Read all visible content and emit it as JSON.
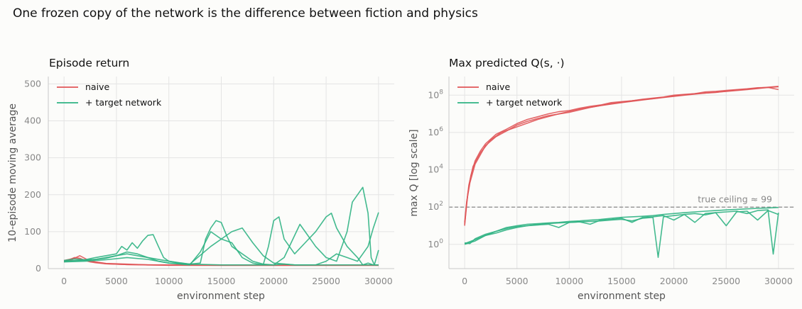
{
  "figure": {
    "suptitle": "One frozen copy of the network is the difference between fiction and physics"
  },
  "colors": {
    "naive": "#e05558",
    "target": "#2fb383",
    "grid": "#e4e4e4",
    "spine": "#c8c8c8",
    "ceiling": "#888888"
  },
  "chart_data": [
    {
      "type": "line",
      "title": "Episode return",
      "xlabel": "environment step",
      "ylabel": "10-episode moving average",
      "xlim": [
        -1500,
        31500
      ],
      "ylim": [
        0,
        520
      ],
      "yscale": "linear",
      "grid": true,
      "legend_position": "top-left",
      "xticks": [
        0,
        5000,
        10000,
        15000,
        20000,
        25000,
        30000
      ],
      "xtick_labels": [
        "0",
        "5000",
        "10000",
        "15000",
        "20000",
        "25000",
        "30000"
      ],
      "yticks": [
        0,
        100,
        200,
        300,
        400,
        500
      ],
      "ytick_labels": [
        "0",
        "100",
        "200",
        "300",
        "400",
        "500"
      ],
      "legend": [
        "naive",
        "+ target network"
      ],
      "series": [
        {
          "name": "naive",
          "color_key": "naive",
          "runs": [
            {
              "x": [
                0,
                500,
                1000,
                1500,
                2000,
                2500,
                3000,
                4000,
                5000,
                6000,
                8000,
                10000,
                15000,
                20000,
                25000,
                30000
              ],
              "y": [
                20,
                24,
                30,
                28,
                22,
                18,
                16,
                13,
                12,
                11,
                10,
                10,
                9,
                9,
                9,
                9
              ]
            },
            {
              "x": [
                0,
                1000,
                2000,
                3000,
                4000,
                6000,
                8000,
                10000,
                15000,
                20000,
                25000,
                30000
              ],
              "y": [
                18,
                26,
                24,
                18,
                14,
                12,
                10,
                9,
                9,
                9,
                9,
                9
              ]
            },
            {
              "x": [
                0,
                1000,
                1500,
                2500,
                4000,
                6000,
                9000,
                12000,
                20000,
                30000
              ],
              "y": [
                22,
                28,
                35,
                20,
                13,
                11,
                10,
                9,
                9,
                9
              ]
            }
          ]
        },
        {
          "name": "+ target network",
          "color_key": "target",
          "runs": [
            {
              "x": [
                0,
                1000,
                2000,
                3000,
                4000,
                5000,
                5500,
                6000,
                6500,
                7000,
                7500,
                8000,
                8500,
                9000,
                9500,
                10000,
                11000,
                12000,
                13000,
                13500,
                14000,
                14500,
                15000,
                15500,
                16000,
                17000,
                18000,
                19000,
                20000,
                21000,
                22000,
                23000,
                24000,
                25000,
                26000,
                27000,
                28000,
                28500,
                29000,
                29500,
                30000
              ],
              "y": [
                22,
                26,
                24,
                30,
                35,
                40,
                60,
                50,
                70,
                55,
                75,
                90,
                92,
                60,
                30,
                20,
                15,
                12,
                15,
                80,
                110,
                130,
                125,
                90,
                60,
                40,
                20,
                12,
                10,
                12,
                10,
                10,
                10,
                10,
                10,
                10,
                10,
                10,
                10,
                10,
                10
              ]
            },
            {
              "x": [
                0,
                2000,
                4000,
                5000,
                6000,
                7000,
                8000,
                9000,
                10000,
                12000,
                13000,
                14000,
                15000,
                16000,
                17000,
                18000,
                19000,
                19500,
                20000,
                20500,
                21000,
                22000,
                23000,
                24000,
                25000,
                25500,
                26000,
                27000,
                28000,
                28500,
                29000,
                29500,
                30000
              ],
              "y": [
                20,
                22,
                28,
                35,
                45,
                40,
                30,
                20,
                15,
                10,
                45,
                100,
                80,
                70,
                30,
                15,
                10,
                60,
                130,
                140,
                80,
                40,
                70,
                100,
                140,
                150,
                110,
                60,
                30,
                10,
                15,
                10,
                10
              ]
            },
            {
              "x": [
                0,
                3000,
                6000,
                8000,
                10000,
                12000,
                15000,
                18000,
                20000,
                21000,
                22000,
                22500,
                23000,
                24000,
                25000,
                26000,
                27000,
                27500,
                28000,
                28500,
                29000,
                29300,
                29600,
                30000
              ],
              "y": [
                20,
                25,
                40,
                30,
                20,
                12,
                10,
                10,
                10,
                30,
                90,
                120,
                100,
                60,
                30,
                20,
                100,
                180,
                200,
                220,
                150,
                30,
                10,
                50
              ]
            },
            {
              "x": [
                0,
                2000,
                4000,
                6000,
                8000,
                10000,
                12000,
                14000,
                16000,
                17000,
                18000,
                19000,
                20000,
                22000,
                24000,
                25000,
                26000,
                27000,
                28000,
                29000,
                29500,
                30000
              ],
              "y": [
                18,
                20,
                24,
                30,
                25,
                15,
                12,
                60,
                100,
                110,
                70,
                35,
                15,
                10,
                10,
                20,
                40,
                30,
                20,
                60,
                110,
                152
              ]
            }
          ]
        }
      ]
    },
    {
      "type": "line",
      "title": "Max predicted Q(s, ·)",
      "xlabel": "environment step",
      "ylabel": "max Q  [log scale]",
      "xlim": [
        -1500,
        31500
      ],
      "ylim": [
        0.05,
        1000000000
      ],
      "yscale": "log",
      "grid": true,
      "legend_position": "top-left",
      "xticks": [
        0,
        5000,
        10000,
        15000,
        20000,
        25000,
        30000
      ],
      "xtick_labels": [
        "0",
        "5000",
        "10000",
        "15000",
        "20000",
        "25000",
        "30000"
      ],
      "yticks": [
        1,
        100,
        10000,
        1000000,
        100000000
      ],
      "ytick_bases": [
        "10",
        "10",
        "10",
        "10",
        "10"
      ],
      "ytick_exponents": [
        "0",
        "2",
        "4",
        "6",
        "8"
      ],
      "legend": [
        "naive",
        "+ target network"
      ],
      "reference_line": {
        "y": 99,
        "label": "true ceiling ≈ 99"
      },
      "series": [
        {
          "name": "naive",
          "color_key": "naive",
          "runs": [
            {
              "x": [
                0,
                100,
                300,
                600,
                1000,
                1500,
                2000,
                3000,
                4000,
                5000,
                6000,
                7000,
                8000,
                9000,
                10000,
                11000,
                12000,
                13000,
                14000,
                15000,
                16000,
                17000,
                18000,
                19000,
                20000,
                21000,
                22000,
                23000,
                24000,
                25000,
                26000,
                27000,
                28000,
                29000,
                30000
              ],
              "y": [
                12,
                40,
                500,
                5000,
                30000,
                100000,
                250000,
                800000,
                1500000,
                3000000,
                5000000,
                7000000,
                10000000,
                13000000,
                15000000,
                20000000,
                25000000,
                30000000,
                40000000,
                45000000,
                50000000,
                60000000,
                70000000,
                80000000,
                100000000,
                110000000,
                120000000,
                150000000,
                160000000,
                180000000,
                200000000,
                220000000,
                250000000,
                260000000,
                280000000
              ]
            },
            {
              "x": [
                0,
                200,
                500,
                1000,
                2000,
                3000,
                4000,
                5000,
                6000,
                8000,
                10000,
                12000,
                14000,
                16000,
                18000,
                20000,
                22000,
                24000,
                26000,
                28000,
                30000
              ],
              "y": [
                15,
                200,
                2000,
                20000,
                200000,
                600000,
                1200000,
                2500000,
                4000000,
                8000000,
                12000000,
                22000000,
                35000000,
                50000000,
                65000000,
                90000000,
                120000000,
                140000000,
                190000000,
                240000000,
                300000000
              ]
            },
            {
              "x": [
                0,
                150,
                400,
                800,
                1500,
                2500,
                3500,
                5000,
                7000,
                9000,
                11000,
                13000,
                15000,
                17000,
                19000,
                21000,
                23000,
                25000,
                27000,
                29000,
                30000
              ],
              "y": [
                10,
                100,
                1500,
                15000,
                80000,
                400000,
                1000000,
                2000000,
                5000000,
                10000000,
                18000000,
                28000000,
                40000000,
                55000000,
                75000000,
                100000000,
                130000000,
                160000000,
                200000000,
                260000000,
                200000000
              ]
            }
          ]
        },
        {
          "name": "+ target network",
          "color_key": "target",
          "runs": [
            {
              "x": [
                0,
                500,
                1000,
                2000,
                3000,
                4000,
                5000,
                6000,
                7000,
                8000,
                9000,
                10000,
                11000,
                12000,
                13000,
                14000,
                15000,
                16000,
                17000,
                18000,
                18500,
                19000,
                20000,
                21000,
                22000,
                23000,
                24000,
                25000,
                26000,
                27000,
                28000,
                29000,
                29500,
                30000
              ],
              "y": [
                1.2,
                1.1,
                2,
                3.5,
                5,
                7,
                9,
                10,
                12,
                13,
                14,
                15,
                16,
                17,
                18,
                20,
                22,
                18,
                25,
                28,
                0.2,
                30,
                35,
                40,
                45,
                38,
                50,
                55,
                60,
                45,
                65,
                70,
                0.3,
                50
              ]
            },
            {
              "x": [
                0,
                1000,
                2000,
                3000,
                4000,
                5000,
                6000,
                7000,
                8000,
                9000,
                10000,
                11000,
                12000,
                13000,
                14000,
                15000,
                16000,
                17000,
                18000,
                19000,
                20000,
                21000,
                22000,
                23000,
                24000,
                25000,
                26000,
                27000,
                28000,
                29000,
                30000
              ],
              "y": [
                1,
                1.5,
                3,
                5,
                8,
                10,
                12,
                13,
                14,
                15,
                17,
                18,
                20,
                22,
                25,
                28,
                30,
                32,
                35,
                40,
                45,
                50,
                55,
                60,
                65,
                70,
                75,
                80,
                85,
                90,
                95
              ]
            },
            {
              "x": [
                0,
                1000,
                2000,
                3000,
                4000,
                5000,
                6000,
                7000,
                8000,
                9000,
                10000,
                11000,
                12000,
                13000,
                14000,
                15000,
                16000,
                17000,
                18000,
                19000,
                20000,
                21000,
                22000,
                23000,
                24000,
                25000,
                26000,
                27000,
                28000,
                29000,
                30000
              ],
              "y": [
                1.1,
                1.8,
                3,
                4,
                6,
                8,
                10,
                11,
                12,
                8,
                15,
                16,
                12,
                20,
                22,
                25,
                15,
                28,
                30,
                35,
                20,
                40,
                15,
                45,
                50,
                10,
                55,
                60,
                20,
                65,
                40
              ]
            }
          ]
        }
      ]
    }
  ]
}
